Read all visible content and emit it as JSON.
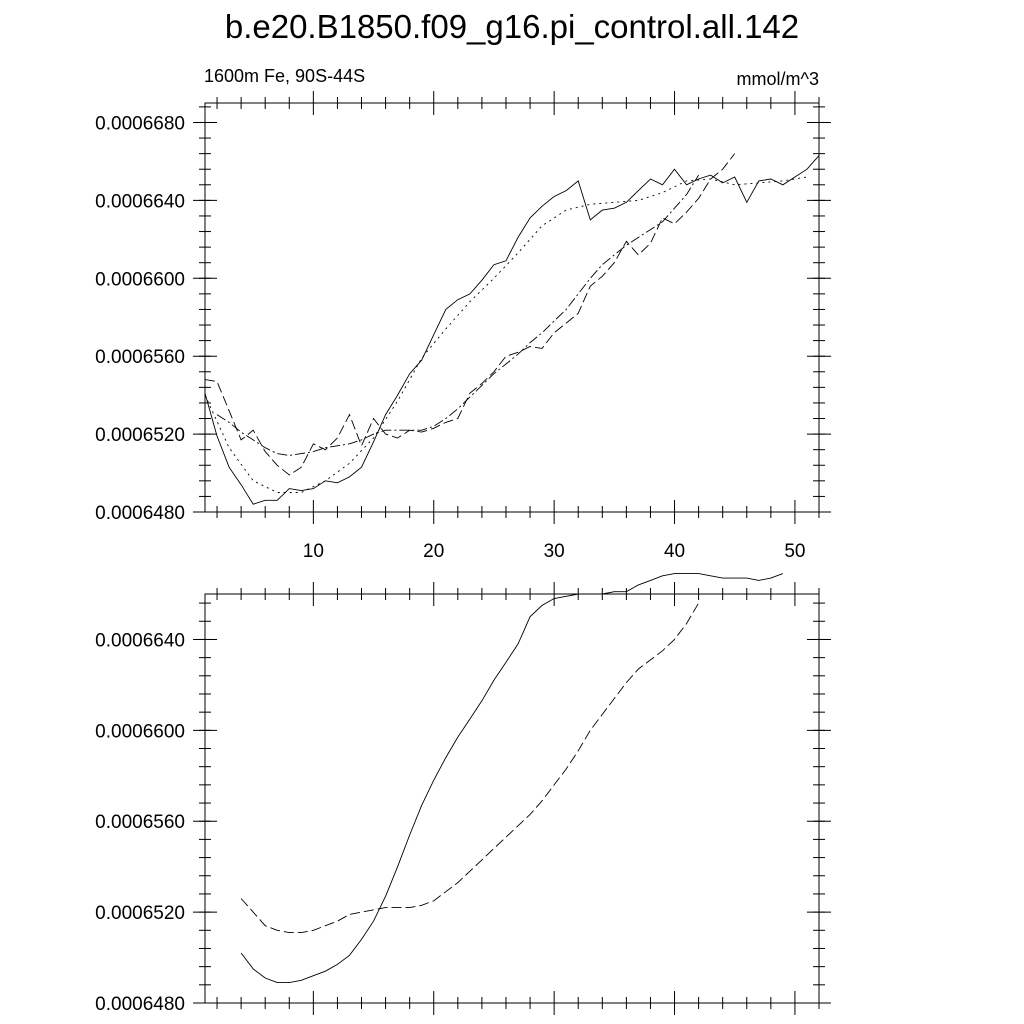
{
  "title": "b.e20.B1850.f09_g16.pi_control.all.142",
  "subtitle_left": "1600m Fe, 90S-44S",
  "subtitle_right": "mmol/m^3",
  "chart_data": [
    {
      "type": "line",
      "panel": "top",
      "title": "1600m Fe, 90S-44S",
      "ylabel": "mmol/m^3",
      "xlim": [
        1,
        52
      ],
      "ylim": [
        0.000648,
        0.000669
      ],
      "xticks": [
        10,
        20,
        30,
        40,
        50
      ],
      "xtick_labels": [
        "10",
        "20",
        "30",
        "40",
        "50"
      ],
      "yticks": [
        0.000648,
        0.000652,
        0.000656,
        0.00066,
        0.000664,
        0.000668
      ],
      "ytick_labels": [
        "0.0006480",
        "0.0006520",
        "0.0006560",
        "0.0006600",
        "0.0006640",
        "0.0006680"
      ],
      "series": [
        {
          "name": "solid",
          "dash": "solid",
          "x": [
            1,
            2,
            3,
            4,
            5,
            6,
            7,
            8,
            9,
            10,
            11,
            12,
            13,
            14,
            15,
            16,
            17,
            18,
            19,
            20,
            21,
            22,
            23,
            24,
            25,
            26,
            27,
            28,
            29,
            30,
            31,
            32,
            33,
            34,
            35,
            36,
            37,
            38,
            39,
            40,
            41,
            42,
            43,
            44,
            45,
            46,
            47,
            48,
            49,
            50,
            51,
            52
          ],
          "y": [
            0.0006541,
            0.0006519,
            0.0006503,
            0.0006494,
            0.0006484,
            0.0006486,
            0.0006486,
            0.0006492,
            0.0006491,
            0.0006492,
            0.0006496,
            0.0006495,
            0.0006498,
            0.0006503,
            0.0006516,
            0.000653,
            0.000654,
            0.0006551,
            0.0006558,
            0.0006571,
            0.0006584,
            0.0006589,
            0.0006592,
            0.0006599,
            0.0006607,
            0.0006609,
            0.0006621,
            0.0006631,
            0.0006637,
            0.0006642,
            0.0006645,
            0.000665,
            0.000663,
            0.0006635,
            0.0006636,
            0.0006639,
            0.0006645,
            0.0006651,
            0.0006648,
            0.0006656,
            0.0006648,
            0.0006651,
            0.0006653,
            0.0006649,
            0.0006652,
            0.0006639,
            0.000665,
            0.0006651,
            0.0006648,
            0.0006652,
            0.0006656,
            0.0006663
          ]
        },
        {
          "name": "long-dash",
          "dash": "long",
          "x": [
            1,
            2,
            3,
            4,
            5,
            6,
            7,
            8,
            9,
            10,
            11,
            12,
            13,
            14,
            15,
            16,
            17,
            18,
            19,
            20,
            21,
            22,
            23,
            24,
            25,
            26,
            27,
            28,
            29,
            30,
            31,
            32,
            33,
            34,
            35,
            36,
            37,
            38,
            39,
            40,
            41,
            42,
            43,
            44,
            45
          ],
          "y": [
            0.0006548,
            0.0006547,
            0.0006532,
            0.0006517,
            0.0006522,
            0.0006511,
            0.0006504,
            0.0006499,
            0.0006503,
            0.0006515,
            0.0006512,
            0.0006518,
            0.000653,
            0.0006514,
            0.0006528,
            0.000652,
            0.0006518,
            0.0006522,
            0.0006521,
            0.0006523,
            0.0006526,
            0.0006528,
            0.0006541,
            0.0006546,
            0.0006552,
            0.000656,
            0.0006562,
            0.0006565,
            0.0006564,
            0.0006572,
            0.0006577,
            0.0006582,
            0.0006596,
            0.0006601,
            0.0006608,
            0.0006619,
            0.0006612,
            0.0006618,
            0.0006631,
            0.0006628,
            0.0006634,
            0.0006641,
            0.0006651,
            0.0006656,
            0.0006664
          ]
        },
        {
          "name": "dotted",
          "dash": "dot",
          "x": [
            1,
            3,
            5,
            7,
            9,
            11,
            13,
            15,
            17,
            19,
            21,
            23,
            25,
            27,
            29,
            31,
            33,
            35,
            37,
            39,
            41,
            43,
            45,
            47,
            49,
            51
          ],
          "y": [
            0.000654,
            0.0006513,
            0.0006496,
            0.000649,
            0.000649,
            0.0006496,
            0.0006505,
            0.0006518,
            0.0006537,
            0.0006559,
            0.0006574,
            0.0006588,
            0.00066,
            0.0006613,
            0.0006627,
            0.0006635,
            0.0006638,
            0.0006639,
            0.000664,
            0.0006644,
            0.000665,
            0.0006651,
            0.0006648,
            0.0006649,
            0.000665,
            0.0006652
          ]
        },
        {
          "name": "dash-dot",
          "dash": "dashdot",
          "x": [
            2,
            3,
            4,
            5,
            6,
            7,
            8,
            9,
            10,
            11,
            12,
            13,
            14,
            15,
            16,
            17,
            18,
            19,
            20,
            21,
            22,
            23,
            24,
            25,
            26,
            27,
            28,
            29,
            30,
            31,
            32,
            33,
            34,
            35,
            36,
            37,
            38,
            39,
            40,
            41,
            42
          ],
          "y": [
            0.000653,
            0.0006526,
            0.0006521,
            0.0006517,
            0.0006513,
            0.000651,
            0.0006509,
            0.000651,
            0.0006511,
            0.0006513,
            0.0006514,
            0.0006515,
            0.0006517,
            0.000652,
            0.0006522,
            0.0006522,
            0.0006522,
            0.0006522,
            0.0006524,
            0.0006528,
            0.0006533,
            0.0006539,
            0.0006545,
            0.0006551,
            0.0006556,
            0.0006561,
            0.0006567,
            0.0006572,
            0.0006578,
            0.0006584,
            0.0006592,
            0.00066,
            0.0006607,
            0.0006612,
            0.0006617,
            0.0006621,
            0.0006625,
            0.0006629,
            0.0006636,
            0.0006643,
            0.0006653
          ]
        }
      ]
    },
    {
      "type": "line",
      "panel": "bottom",
      "xlim": [
        1,
        52
      ],
      "ylim": [
        0.000648,
        0.000666
      ],
      "xticks": [
        10,
        20,
        30,
        40,
        50
      ],
      "xtick_labels": [],
      "yticks": [
        0.000648,
        0.000652,
        0.000656,
        0.00066,
        0.000664
      ],
      "ytick_labels": [
        "0.0006480",
        "0.0006520",
        "0.0006560",
        "0.0006600",
        "0.0006640"
      ],
      "series": [
        {
          "name": "solid",
          "dash": "solid",
          "x": [
            4,
            5,
            6,
            7,
            8,
            9,
            10,
            11,
            12,
            13,
            14,
            15,
            16,
            17,
            18,
            19,
            20,
            21,
            22,
            23,
            24,
            25,
            26,
            27,
            28,
            29,
            30,
            31,
            32,
            33,
            34,
            35,
            36,
            37,
            38,
            39,
            40,
            41,
            42,
            43,
            44,
            45,
            46,
            47,
            48,
            49
          ],
          "y": [
            0.0006502,
            0.0006495,
            0.0006491,
            0.0006489,
            0.0006489,
            0.000649,
            0.0006492,
            0.0006494,
            0.0006497,
            0.0006501,
            0.0006508,
            0.0006516,
            0.0006527,
            0.000654,
            0.0006554,
            0.0006567,
            0.0006578,
            0.0006588,
            0.0006597,
            0.0006605,
            0.0006613,
            0.0006622,
            0.000663,
            0.0006638,
            0.000665,
            0.0006655,
            0.0006658,
            0.0006659,
            0.000666,
            0.000666,
            0.000666,
            0.0006661,
            0.0006661,
            0.0006664,
            0.0006666,
            0.0006668,
            0.0006669,
            0.0006669,
            0.0006669,
            0.0006668,
            0.0006667,
            0.0006667,
            0.0006667,
            0.0006666,
            0.0006667,
            0.0006669
          ]
        },
        {
          "name": "long-dash",
          "dash": "long",
          "x": [
            4,
            5,
            6,
            7,
            8,
            9,
            10,
            11,
            12,
            13,
            14,
            15,
            16,
            17,
            18,
            19,
            20,
            21,
            22,
            23,
            24,
            25,
            26,
            27,
            28,
            29,
            30,
            31,
            32,
            33,
            34,
            35,
            36,
            37,
            38,
            39,
            40,
            41,
            42
          ],
          "y": [
            0.0006526,
            0.000652,
            0.0006514,
            0.0006512,
            0.0006511,
            0.0006511,
            0.0006512,
            0.0006514,
            0.0006516,
            0.0006519,
            0.000652,
            0.0006521,
            0.0006522,
            0.0006522,
            0.0006522,
            0.0006523,
            0.0006525,
            0.0006529,
            0.0006533,
            0.0006538,
            0.0006543,
            0.0006548,
            0.0006553,
            0.0006558,
            0.0006563,
            0.0006569,
            0.0006576,
            0.0006583,
            0.0006591,
            0.00066,
            0.0006607,
            0.0006614,
            0.0006621,
            0.0006627,
            0.0006631,
            0.0006635,
            0.000664,
            0.0006647,
            0.0006656
          ]
        }
      ]
    }
  ]
}
